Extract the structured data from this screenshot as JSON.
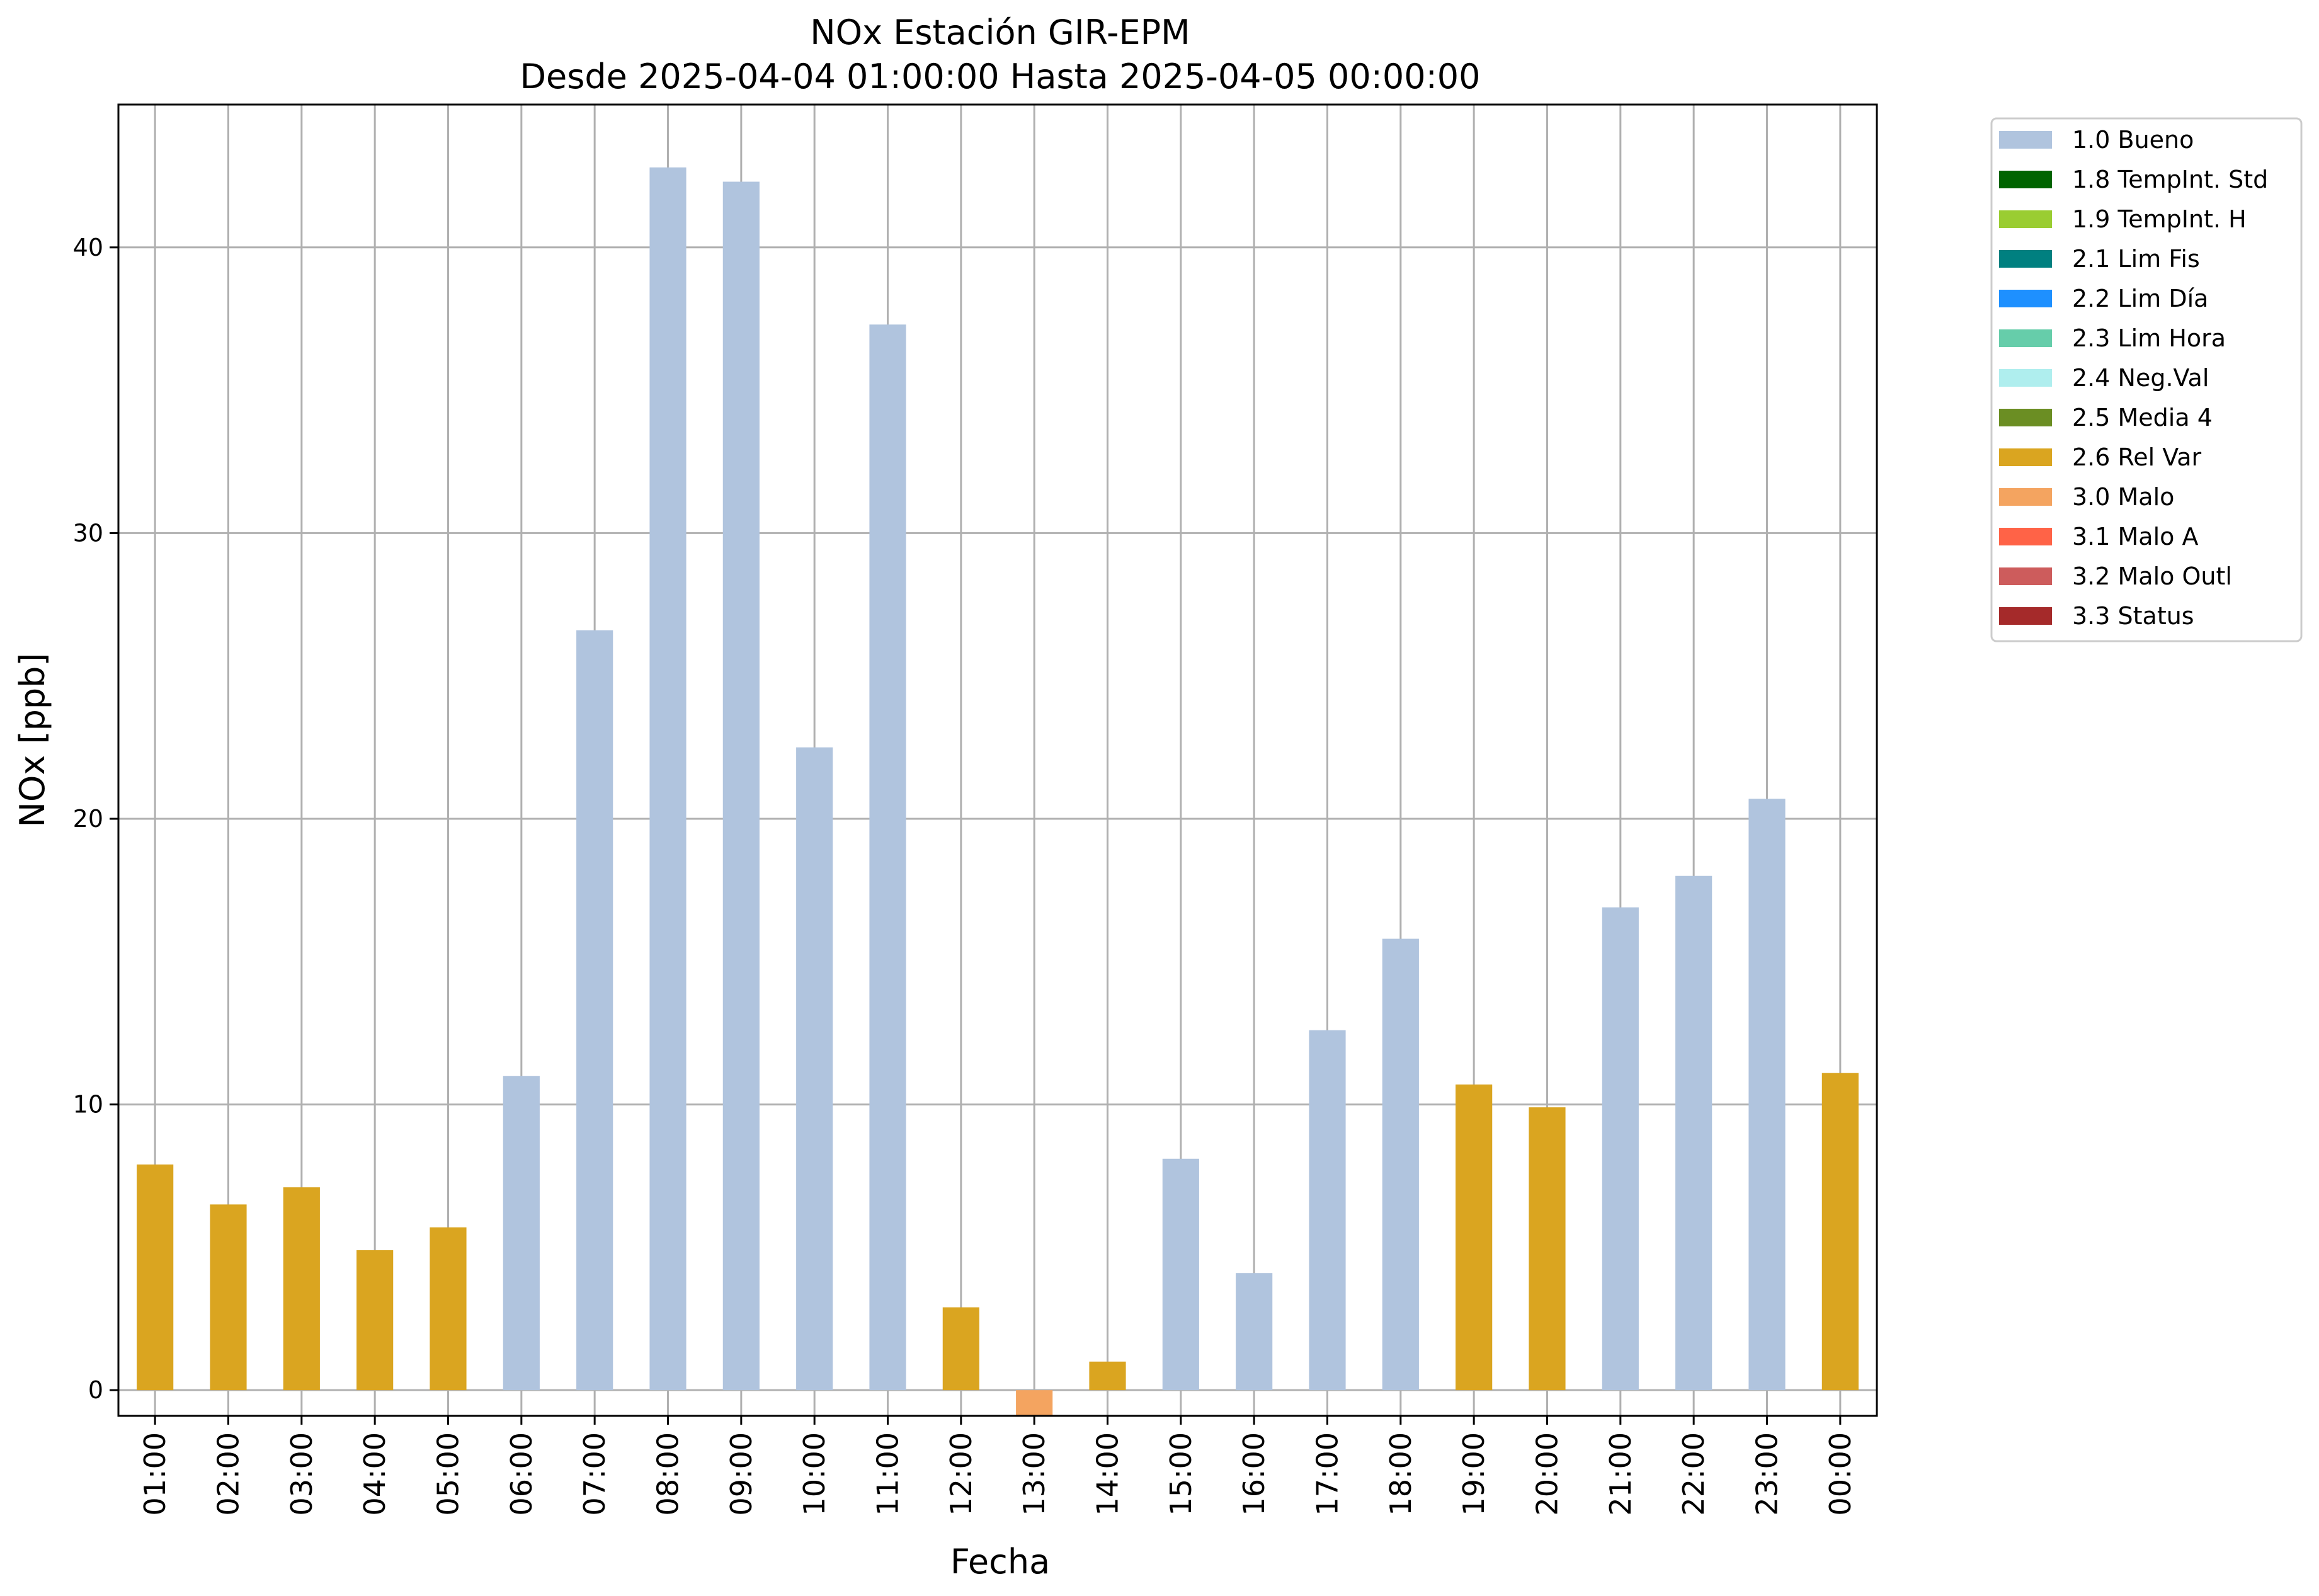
{
  "chart_data": {
    "type": "bar",
    "title": "NOx Estación GIR-EPM",
    "subtitle": "Desde 2025-04-04 01:00:00 Hasta 2025-04-05 00:00:00",
    "xlabel": "Fecha",
    "ylabel": "NOx [ppb]",
    "ylim": [
      -0.9,
      45
    ],
    "yticks": [
      0,
      10,
      20,
      30,
      40
    ],
    "grid": true,
    "legend_position": "outside-top-right",
    "categories": [
      "01:00",
      "02:00",
      "03:00",
      "04:00",
      "05:00",
      "06:00",
      "07:00",
      "08:00",
      "09:00",
      "10:00",
      "11:00",
      "12:00",
      "13:00",
      "14:00",
      "15:00",
      "16:00",
      "17:00",
      "18:00",
      "19:00",
      "20:00",
      "21:00",
      "22:00",
      "23:00",
      "00:00"
    ],
    "values": [
      7.9,
      6.5,
      7.1,
      4.9,
      5.7,
      11.0,
      26.6,
      42.8,
      42.3,
      22.5,
      37.3,
      2.9,
      -0.9,
      1.0,
      8.1,
      4.1,
      12.6,
      15.8,
      10.7,
      9.9,
      16.9,
      18.0,
      20.7,
      11.1
    ],
    "flags": [
      "2.6 Rel Var",
      "2.6 Rel Var",
      "2.6 Rel Var",
      "2.6 Rel Var",
      "2.6 Rel Var",
      "1.0 Bueno",
      "1.0 Bueno",
      "1.0 Bueno",
      "1.0 Bueno",
      "1.0 Bueno",
      "1.0 Bueno",
      "2.6 Rel Var",
      "3.0 Malo",
      "2.6 Rel Var",
      "1.0 Bueno",
      "1.0 Bueno",
      "1.0 Bueno",
      "1.0 Bueno",
      "2.6 Rel Var",
      "2.6 Rel Var",
      "1.0 Bueno",
      "1.0 Bueno",
      "1.0 Bueno",
      "2.6 Rel Var"
    ],
    "legend": [
      {
        "label": "1.0 Bueno",
        "color": "#b0c4de"
      },
      {
        "label": "1.8 TempInt. Std",
        "color": "#006400"
      },
      {
        "label": "1.9 TempInt. H",
        "color": "#9acd32"
      },
      {
        "label": "2.1 Lim Fis",
        "color": "#008080"
      },
      {
        "label": "2.2 Lim Día",
        "color": "#1e90ff"
      },
      {
        "label": "2.3 Lim Hora",
        "color": "#66cdaa"
      },
      {
        "label": "2.4 Neg.Val",
        "color": "#afeeee"
      },
      {
        "label": "2.5 Media 4",
        "color": "#6b8e23"
      },
      {
        "label": "2.6 Rel Var",
        "color": "#daa520"
      },
      {
        "label": "3.0 Malo",
        "color": "#f4a460"
      },
      {
        "label": "3.1 Malo A",
        "color": "#ff6347"
      },
      {
        "label": "3.2 Malo Outl",
        "color": "#cd5c5c"
      },
      {
        "label": "3.3 Status",
        "color": "#a52a2a"
      }
    ]
  }
}
